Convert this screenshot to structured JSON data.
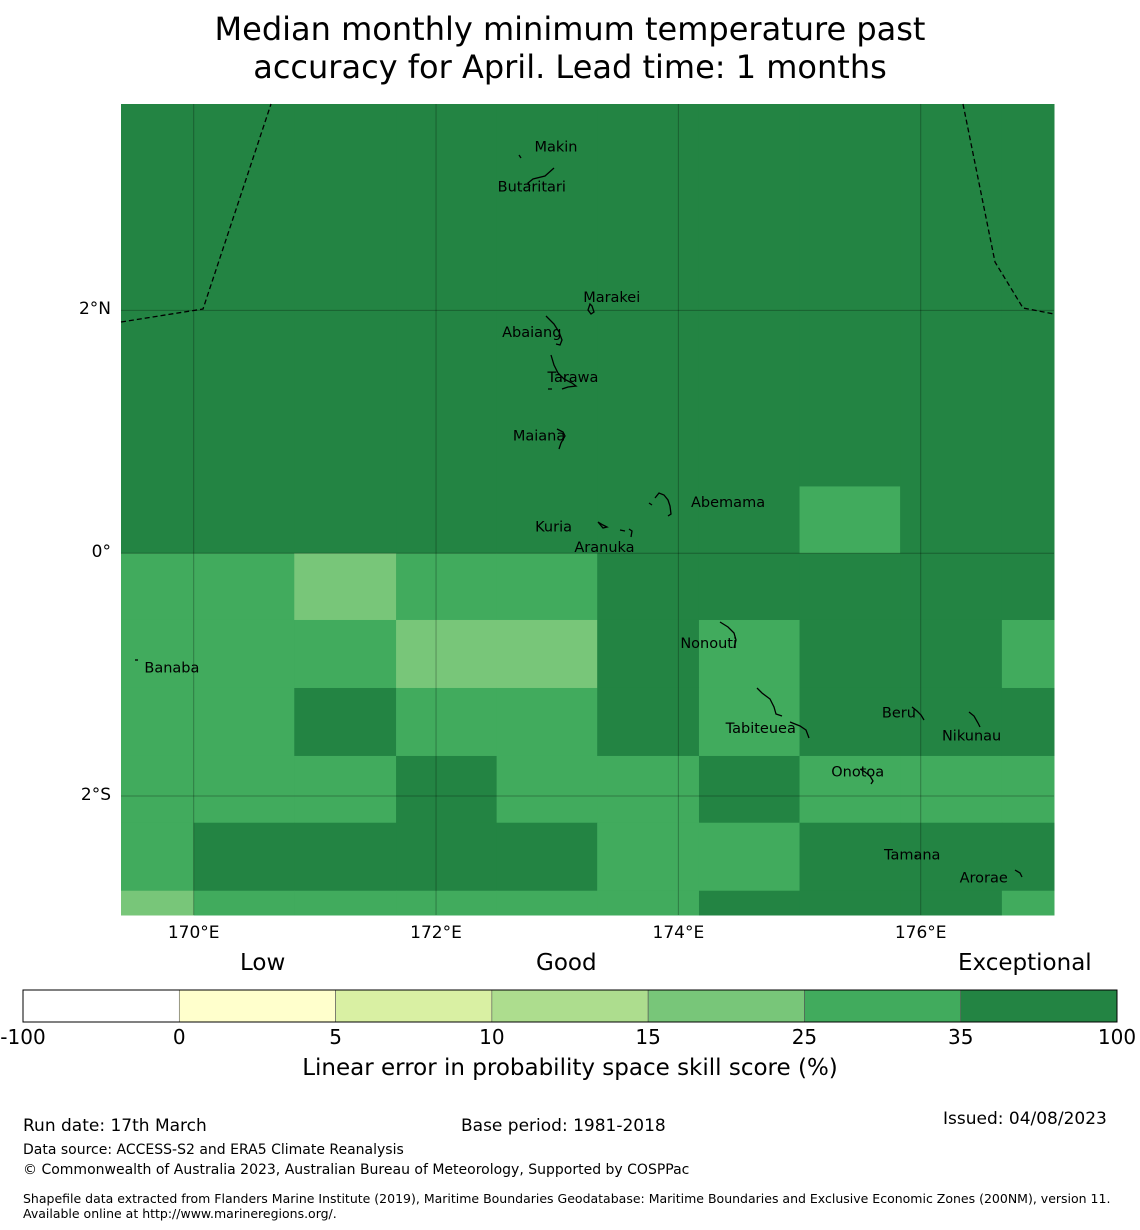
{
  "title": {
    "line1": "Median monthly minimum temperature past",
    "line2": "accuracy for April. Lead time: 1 months"
  },
  "map": {
    "lon_range": [
      169.4,
      177.1
    ],
    "lat_range": [
      -2.98,
      3.7
    ],
    "lat_ticks": [
      {
        "value": 2,
        "label": "2°N"
      },
      {
        "value": 0,
        "label": "0°"
      },
      {
        "value": -2,
        "label": "2°S"
      }
    ],
    "lon_ticks": [
      {
        "value": 170,
        "label": "170°E"
      },
      {
        "value": 172,
        "label": "172°E"
      },
      {
        "value": 174,
        "label": "174°E"
      },
      {
        "value": 176,
        "label": "176°E"
      }
    ],
    "islands": [
      {
        "name": "Makin",
        "lon": 172.99,
        "lat": 3.35
      },
      {
        "name": "Butaritari",
        "lon": 172.79,
        "lat": 3.02
      },
      {
        "name": "Marakei",
        "lon": 173.45,
        "lat": 2.11
      },
      {
        "name": "Abaiang",
        "lon": 172.79,
        "lat": 1.82
      },
      {
        "name": "Tarawa",
        "lon": 173.13,
        "lat": 1.45
      },
      {
        "name": "Maiana",
        "lon": 172.85,
        "lat": 0.97
      },
      {
        "name": "Abemama",
        "lon": 174.41,
        "lat": 0.42
      },
      {
        "name": "Kuria",
        "lon": 172.97,
        "lat": 0.22
      },
      {
        "name": "Aranuka",
        "lon": 173.39,
        "lat": 0.05
      },
      {
        "name": "Nonouti",
        "lon": 174.25,
        "lat": -0.74
      },
      {
        "name": "Banaba",
        "lon": 169.82,
        "lat": -0.94
      },
      {
        "name": "Beru",
        "lon": 175.82,
        "lat": -1.31
      },
      {
        "name": "Tabiteuea",
        "lon": 174.68,
        "lat": -1.44
      },
      {
        "name": "Nikunau",
        "lon": 176.42,
        "lat": -1.5
      },
      {
        "name": "Onotoa",
        "lon": 175.48,
        "lat": -1.8
      },
      {
        "name": "Tamana",
        "lon": 175.93,
        "lat": -2.48
      },
      {
        "name": "Arorae",
        "lon": 176.52,
        "lat": -2.67
      }
    ]
  },
  "skill_grid": {
    "description_values": "skill score category index per grid cell (0=-100..0, 1=0..5, 2=5..10, 3=10..15, 4=15..25, 5=25..35, 6=35..100)",
    "lon_edges": [
      169.4,
      170.0,
      170.83,
      171.67,
      172.5,
      173.33,
      174.17,
      175.0,
      175.83,
      176.67,
      177.1
    ],
    "lat_edges": [
      3.7,
      0.0,
      -0.55,
      -1.11,
      -1.67,
      -2.22,
      -2.78,
      -2.98
    ],
    "rows": [
      [
        6,
        6,
        6,
        6,
        6,
        6,
        6,
        6,
        6,
        6
      ],
      [
        5,
        5,
        4,
        5,
        5,
        6,
        6,
        6,
        6,
        6
      ],
      [
        5,
        5,
        5,
        4,
        4,
        6,
        5,
        6,
        6,
        5
      ],
      [
        5,
        5,
        6,
        5,
        5,
        6,
        5,
        6,
        6,
        6
      ],
      [
        5,
        5,
        5,
        6,
        5,
        5,
        6,
        5,
        5,
        5
      ],
      [
        5,
        6,
        6,
        6,
        6,
        5,
        5,
        6,
        6,
        6
      ],
      [
        4,
        5,
        5,
        5,
        5,
        5,
        6,
        6,
        6,
        5
      ]
    ],
    "overrides": [
      {
        "lon": [
          175.0,
          175.83
        ],
        "lat": [
          0.0,
          0.55
        ],
        "category": 5
      }
    ]
  },
  "colorbar": {
    "category_labels": {
      "low": "Low",
      "good": "Good",
      "exceptional": "Exceptional"
    },
    "ticks": [
      "-100",
      "0",
      "5",
      "10",
      "15",
      "25",
      "35",
      "100"
    ],
    "colors": [
      "#ffffff",
      "#ffffcc",
      "#d9f0a3",
      "#addd8e",
      "#78c679",
      "#41ab5d",
      "#238443"
    ],
    "label": "Linear error in probability space skill score (%)"
  },
  "footer": {
    "run_date": "Run date: 17th March",
    "base_period": "Base period: 1981-2018",
    "issued": "Issued: 04/08/2023",
    "data_source": "Data source: ACCESS-S2 and ERA5 Climate Reanalysis",
    "copyright": "© Commonwealth of Australia 2023, Australian Bureau of Meteorology, Supported by COSPPac",
    "shapefile": "Shapefile data extracted from Flanders Marine Institute (2019), Maritime Boundaries Geodatabase: Maritime Boundaries and Exclusive Economic Zones (200NM), version 11. Available online at http://www.marineregions.org/."
  }
}
